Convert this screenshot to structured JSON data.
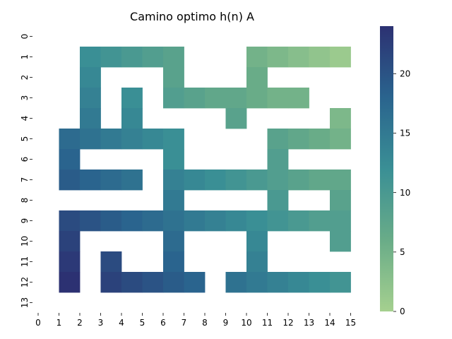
{
  "chart_data": {
    "type": "heatmap",
    "title": "Camino optimo h(n) A",
    "xlabel": "",
    "ylabel": "",
    "x_ticks": [
      "0",
      "1",
      "2",
      "3",
      "4",
      "5",
      "6",
      "7",
      "8",
      "9",
      "10",
      "11",
      "12",
      "13",
      "14",
      "15"
    ],
    "y_ticks": [
      "0",
      "1",
      "2",
      "3",
      "4",
      "5",
      "6",
      "7",
      "8",
      "9",
      "10",
      "11",
      "12",
      "13"
    ],
    "grid": false,
    "colorscale": {
      "name": "crest",
      "min": 0,
      "max": 24,
      "ticks": [
        "0",
        "5",
        "10",
        "15",
        "20"
      ],
      "low_color": "#a5d08f",
      "high_color": "#2c3172"
    },
    "cells": [
      {
        "row": 1,
        "col": 2,
        "value": 12
      },
      {
        "row": 1,
        "col": 3,
        "value": 11
      },
      {
        "row": 1,
        "col": 4,
        "value": 10
      },
      {
        "row": 1,
        "col": 5,
        "value": 9
      },
      {
        "row": 1,
        "col": 6,
        "value": 8
      },
      {
        "row": 1,
        "col": 10,
        "value": 5
      },
      {
        "row": 1,
        "col": 11,
        "value": 4
      },
      {
        "row": 1,
        "col": 12,
        "value": 3
      },
      {
        "row": 1,
        "col": 13,
        "value": 2
      },
      {
        "row": 1,
        "col": 14,
        "value": 1
      },
      {
        "row": 2,
        "col": 2,
        "value": 13
      },
      {
        "row": 2,
        "col": 6,
        "value": 8
      },
      {
        "row": 2,
        "col": 10,
        "value": 6
      },
      {
        "row": 3,
        "col": 2,
        "value": 14
      },
      {
        "row": 3,
        "col": 4,
        "value": 12
      },
      {
        "row": 3,
        "col": 6,
        "value": 9
      },
      {
        "row": 3,
        "col": 7,
        "value": 8
      },
      {
        "row": 3,
        "col": 8,
        "value": 7
      },
      {
        "row": 3,
        "col": 9,
        "value": 7
      },
      {
        "row": 3,
        "col": 10,
        "value": 6
      },
      {
        "row": 3,
        "col": 11,
        "value": 5
      },
      {
        "row": 3,
        "col": 12,
        "value": 5
      },
      {
        "row": 4,
        "col": 2,
        "value": 15
      },
      {
        "row": 4,
        "col": 4,
        "value": 13
      },
      {
        "row": 4,
        "col": 9,
        "value": 8
      },
      {
        "row": 4,
        "col": 14,
        "value": 4
      },
      {
        "row": 5,
        "col": 1,
        "value": 17
      },
      {
        "row": 5,
        "col": 2,
        "value": 16
      },
      {
        "row": 5,
        "col": 3,
        "value": 15
      },
      {
        "row": 5,
        "col": 4,
        "value": 14
      },
      {
        "row": 5,
        "col": 5,
        "value": 13
      },
      {
        "row": 5,
        "col": 6,
        "value": 12
      },
      {
        "row": 5,
        "col": 11,
        "value": 8
      },
      {
        "row": 5,
        "col": 12,
        "value": 7
      },
      {
        "row": 5,
        "col": 13,
        "value": 6
      },
      {
        "row": 5,
        "col": 14,
        "value": 5
      },
      {
        "row": 6,
        "col": 1,
        "value": 18
      },
      {
        "row": 6,
        "col": 6,
        "value": 12
      },
      {
        "row": 6,
        "col": 11,
        "value": 9
      },
      {
        "row": 7,
        "col": 1,
        "value": 19
      },
      {
        "row": 7,
        "col": 2,
        "value": 18
      },
      {
        "row": 7,
        "col": 3,
        "value": 17
      },
      {
        "row": 7,
        "col": 4,
        "value": 16
      },
      {
        "row": 7,
        "col": 6,
        "value": 14
      },
      {
        "row": 7,
        "col": 7,
        "value": 13
      },
      {
        "row": 7,
        "col": 8,
        "value": 12
      },
      {
        "row": 7,
        "col": 9,
        "value": 11
      },
      {
        "row": 7,
        "col": 10,
        "value": 10
      },
      {
        "row": 7,
        "col": 11,
        "value": 9
      },
      {
        "row": 7,
        "col": 12,
        "value": 8
      },
      {
        "row": 7,
        "col": 13,
        "value": 7
      },
      {
        "row": 7,
        "col": 14,
        "value": 7
      },
      {
        "row": 8,
        "col": 6,
        "value": 15
      },
      {
        "row": 8,
        "col": 11,
        "value": 10
      },
      {
        "row": 8,
        "col": 14,
        "value": 8
      },
      {
        "row": 9,
        "col": 1,
        "value": 21
      },
      {
        "row": 9,
        "col": 2,
        "value": 20
      },
      {
        "row": 9,
        "col": 3,
        "value": 19
      },
      {
        "row": 9,
        "col": 4,
        "value": 18
      },
      {
        "row": 9,
        "col": 5,
        "value": 17
      },
      {
        "row": 9,
        "col": 6,
        "value": 16
      },
      {
        "row": 9,
        "col": 7,
        "value": 15
      },
      {
        "row": 9,
        "col": 8,
        "value": 14
      },
      {
        "row": 9,
        "col": 9,
        "value": 13
      },
      {
        "row": 9,
        "col": 10,
        "value": 12
      },
      {
        "row": 9,
        "col": 11,
        "value": 11
      },
      {
        "row": 9,
        "col": 12,
        "value": 10
      },
      {
        "row": 9,
        "col": 13,
        "value": 9
      },
      {
        "row": 9,
        "col": 14,
        "value": 9
      },
      {
        "row": 10,
        "col": 1,
        "value": 22
      },
      {
        "row": 10,
        "col": 6,
        "value": 17
      },
      {
        "row": 10,
        "col": 10,
        "value": 13
      },
      {
        "row": 10,
        "col": 14,
        "value": 9
      },
      {
        "row": 11,
        "col": 1,
        "value": 23
      },
      {
        "row": 11,
        "col": 3,
        "value": 21
      },
      {
        "row": 11,
        "col": 6,
        "value": 18
      },
      {
        "row": 11,
        "col": 10,
        "value": 14
      },
      {
        "row": 12,
        "col": 1,
        "value": 24
      },
      {
        "row": 12,
        "col": 3,
        "value": 22
      },
      {
        "row": 12,
        "col": 4,
        "value": 21
      },
      {
        "row": 12,
        "col": 5,
        "value": 20
      },
      {
        "row": 12,
        "col": 6,
        "value": 19
      },
      {
        "row": 12,
        "col": 7,
        "value": 18
      },
      {
        "row": 12,
        "col": 9,
        "value": 16
      },
      {
        "row": 12,
        "col": 10,
        "value": 15
      },
      {
        "row": 12,
        "col": 11,
        "value": 14
      },
      {
        "row": 12,
        "col": 12,
        "value": 13
      },
      {
        "row": 12,
        "col": 13,
        "value": 12
      },
      {
        "row": 12,
        "col": 14,
        "value": 11
      }
    ]
  }
}
